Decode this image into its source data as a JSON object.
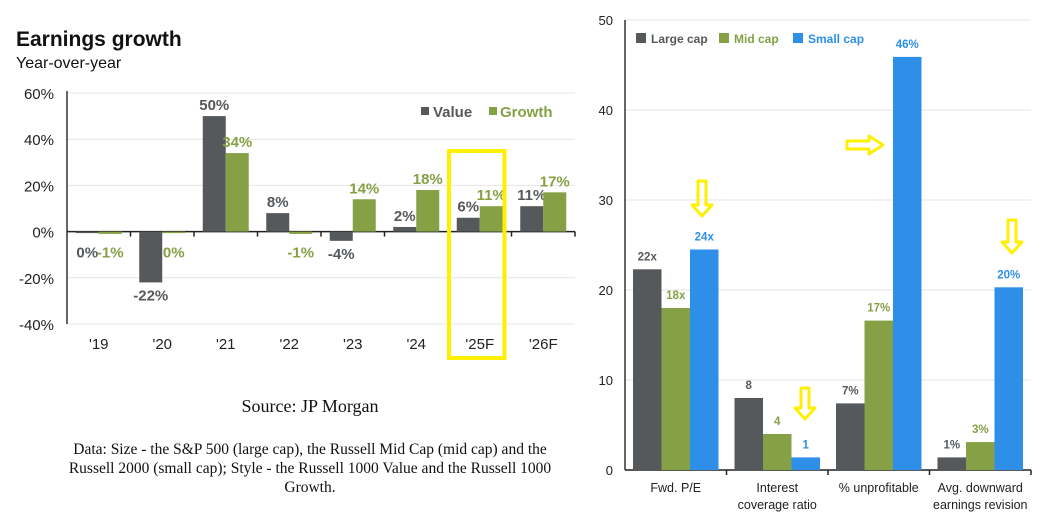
{
  "left_chart_header": {
    "title": "Earnings growth",
    "subtitle": "Year-over-year"
  },
  "source": "Source: JP Morgan",
  "note": "Data: Size - the S&P 500 (large cap), the Russell Mid Cap (mid cap) and the Russell 2000 (small cap); Style - the Russell 1000 Value and the Russell 1000 Growth.",
  "colors": {
    "value": "#55595c",
    "growth": "#86a046",
    "large": "#55595c",
    "mid": "#86a046",
    "small": "#2e8fe8",
    "highlight": "#ffef00"
  },
  "chart_data": [
    {
      "type": "bar",
      "title": "Earnings growth",
      "subtitle": "Year-over-year",
      "xlabel": "",
      "ylabel": "",
      "categories": [
        "'19",
        "'20",
        "'21",
        "'22",
        "'23",
        "'24",
        "'25F",
        "'26F"
      ],
      "series": [
        {
          "name": "Value",
          "values": [
            0,
            -22,
            50,
            8,
            -4,
            2,
            6,
            11
          ],
          "labels": [
            "0%",
            "-22%",
            "50%",
            "8%",
            "-4%",
            "2%",
            "6%",
            "11%"
          ]
        },
        {
          "name": "Growth",
          "values": [
            -1,
            0,
            34,
            -1,
            14,
            18,
            11,
            17
          ],
          "labels": [
            "-1%",
            "0%",
            "34%",
            "-1%",
            "14%",
            "18%",
            "11%",
            "17%"
          ]
        }
      ],
      "ylim": [
        -40,
        60
      ],
      "yticks": [
        -40,
        -20,
        0,
        20,
        40,
        60
      ],
      "ytick_labels": [
        "-40%",
        "-20%",
        "0%",
        "20%",
        "40%",
        "60%"
      ],
      "grid": true,
      "legend": "top-right",
      "annotations": [
        {
          "type": "highlight-box",
          "category": "'25F"
        }
      ]
    },
    {
      "type": "bar",
      "title": "",
      "xlabel": "",
      "ylabel": "",
      "categories": [
        "Fwd. P/E",
        "Interest coverage ratio",
        "% unprofitable",
        "Avg. downward earnings revision"
      ],
      "category_lines": [
        [
          "Fwd. P/E"
        ],
        [
          "Interest",
          "coverage ratio"
        ],
        [
          "% unprofitable"
        ],
        [
          "Avg. downward",
          "earnings revision"
        ]
      ],
      "series": [
        {
          "name": "Large cap",
          "values": [
            22.3,
            8,
            7.4,
            1.4
          ],
          "labels": [
            "22x",
            "8",
            "7%",
            "1%"
          ]
        },
        {
          "name": "Mid cap",
          "values": [
            18,
            4,
            16.6,
            3.1
          ],
          "labels": [
            "18x",
            "4",
            "17%",
            "3%"
          ]
        },
        {
          "name": "Small cap",
          "values": [
            24.5,
            1.4,
            45.9,
            20.3
          ],
          "labels": [
            "24x",
            "1",
            "46%",
            "20%"
          ]
        }
      ],
      "ylim": [
        0,
        50
      ],
      "yticks": [
        0,
        10,
        20,
        30,
        40,
        50
      ],
      "ytick_labels": [
        "0",
        "10",
        "20",
        "30",
        "40",
        "50"
      ],
      "grid": true,
      "legend": "top-left",
      "annotations": [
        {
          "type": "arrow-down",
          "target": "Fwd. P/E / Small cap"
        },
        {
          "type": "arrow-down",
          "target": "Interest coverage ratio / Small cap"
        },
        {
          "type": "arrow-right",
          "target": "% unprofitable / Small cap"
        },
        {
          "type": "arrow-down",
          "target": "Avg. downward earnings revision / Small cap"
        }
      ]
    }
  ]
}
